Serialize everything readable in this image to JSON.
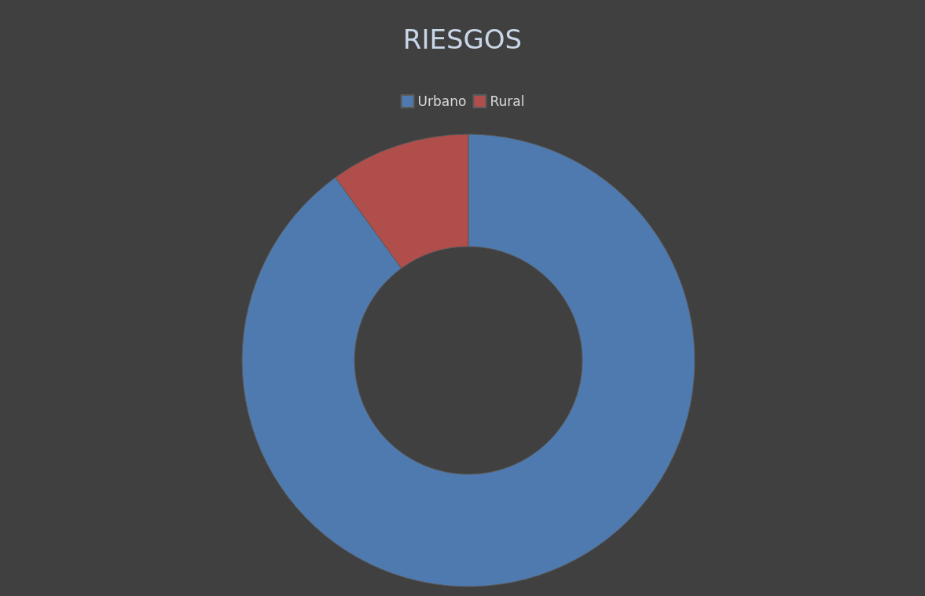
{
  "chart_data": {
    "type": "donut",
    "title": "RIESGOS",
    "categories": [
      "Urbano",
      "Rural"
    ],
    "values": [
      90,
      10
    ],
    "colors": [
      "#4f7ab0",
      "#b04e4b"
    ],
    "legend": "top"
  }
}
